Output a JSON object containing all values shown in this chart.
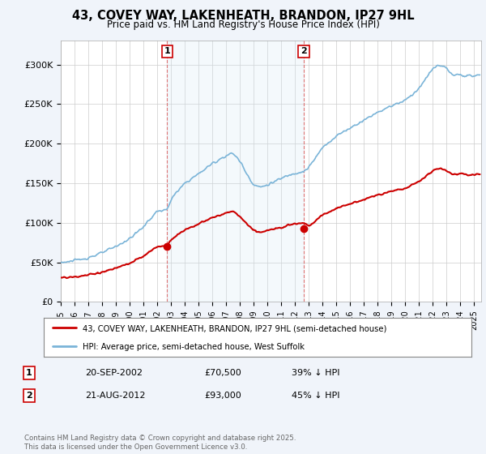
{
  "title_line1": "43, COVEY WAY, LAKENHEATH, BRANDON, IP27 9HL",
  "title_line2": "Price paid vs. HM Land Registry's House Price Index (HPI)",
  "ylabel_ticks": [
    "£0",
    "£50K",
    "£100K",
    "£150K",
    "£200K",
    "£250K",
    "£300K"
  ],
  "ytick_values": [
    0,
    50000,
    100000,
    150000,
    200000,
    250000,
    300000
  ],
  "ylim": [
    0,
    330000
  ],
  "xlim_start": 1995.0,
  "xlim_end": 2025.5,
  "hpi_color": "#7ab4d8",
  "hpi_fill_color": "#d6e8f5",
  "price_color": "#cc0000",
  "vline_color": "#dd6666",
  "marker1_x": 2002.72,
  "marker1_y": 70500,
  "marker2_x": 2012.63,
  "marker2_y": 93000,
  "legend_line1": "43, COVEY WAY, LAKENHEATH, BRANDON, IP27 9HL (semi-detached house)",
  "legend_line2": "HPI: Average price, semi-detached house, West Suffolk",
  "table_row1_num": "1",
  "table_row1_date": "20-SEP-2002",
  "table_row1_price": "£70,500",
  "table_row1_hpi": "39% ↓ HPI",
  "table_row2_num": "2",
  "table_row2_date": "21-AUG-2012",
  "table_row2_price": "£93,000",
  "table_row2_hpi": "45% ↓ HPI",
  "footer": "Contains HM Land Registry data © Crown copyright and database right 2025.\nThis data is licensed under the Open Government Licence v3.0.",
  "background_color": "#f0f4fa",
  "plot_bg_color": "#ffffff"
}
